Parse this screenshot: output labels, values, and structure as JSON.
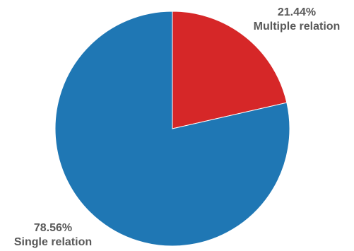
{
  "chart_data": {
    "type": "pie",
    "start_angle_deg": 0,
    "direction": "clockwise",
    "slices": [
      {
        "label": "Multiple relation",
        "value": 21.44,
        "value_text": "21.44%",
        "color": "#d62728"
      },
      {
        "label": "Single relation",
        "value": 78.56,
        "value_text": "78.56%",
        "color": "#1f77b4"
      }
    ],
    "slice_border_color": "#ffffff"
  }
}
